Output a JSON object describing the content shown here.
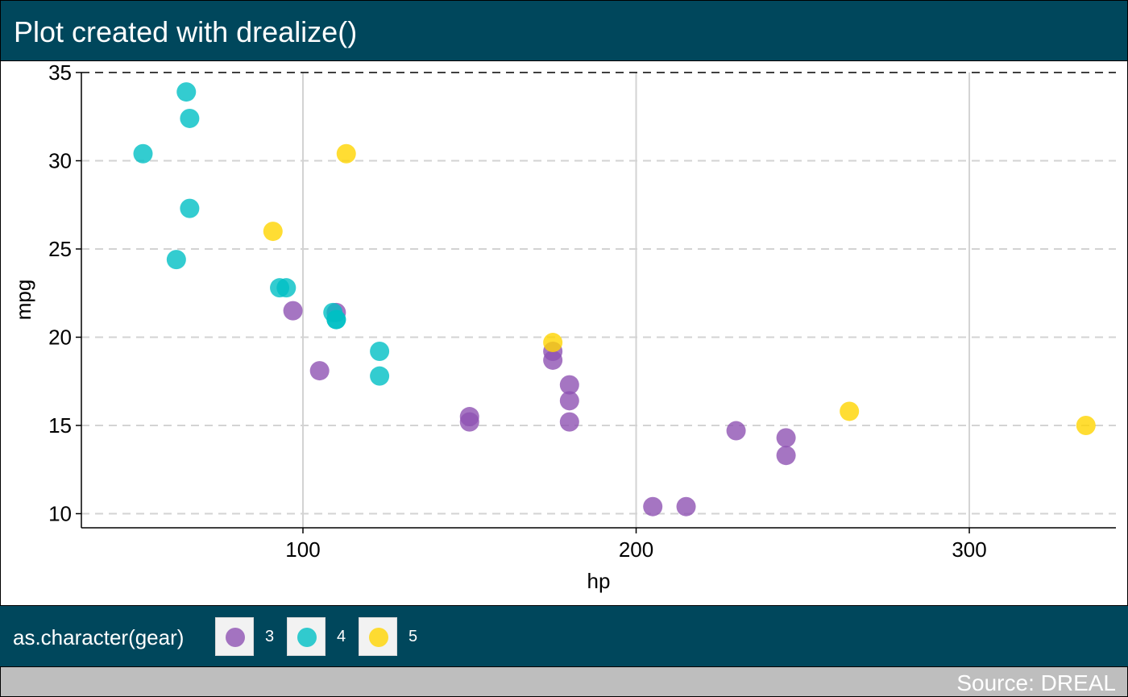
{
  "title": "Plot created with drealize()",
  "caption": "Source: DREAL",
  "legend": {
    "title": "as.character(gear)",
    "items": [
      {
        "label": "3",
        "color": "#8e53b3"
      },
      {
        "label": "4",
        "color": "#00bfc4"
      },
      {
        "label": "5",
        "color": "#ffd400"
      }
    ]
  },
  "chart_data": {
    "type": "scatter",
    "xlabel": "hp",
    "ylabel": "mpg",
    "xlim": [
      33.5,
      344
    ],
    "ylim": [
      9.2,
      35
    ],
    "xticks": [
      100,
      200,
      300
    ],
    "yticks": [
      10,
      15,
      20,
      25,
      30,
      35
    ],
    "grid": {
      "x_major": "solid",
      "y_major": "dashed"
    },
    "legend_position": "bottom",
    "series": [
      {
        "name": "3",
        "color": "#8e53b3",
        "points": [
          {
            "x": 110,
            "y": 21.4
          },
          {
            "x": 175,
            "y": 18.7
          },
          {
            "x": 105,
            "y": 18.1
          },
          {
            "x": 245,
            "y": 14.3
          },
          {
            "x": 180,
            "y": 16.4
          },
          {
            "x": 180,
            "y": 17.3
          },
          {
            "x": 180,
            "y": 15.2
          },
          {
            "x": 205,
            "y": 10.4
          },
          {
            "x": 215,
            "y": 10.4
          },
          {
            "x": 230,
            "y": 14.7
          },
          {
            "x": 97,
            "y": 21.5
          },
          {
            "x": 150,
            "y": 15.5
          },
          {
            "x": 150,
            "y": 15.2
          },
          {
            "x": 245,
            "y": 13.3
          },
          {
            "x": 175,
            "y": 19.2
          }
        ]
      },
      {
        "name": "4",
        "color": "#00bfc4",
        "points": [
          {
            "x": 110,
            "y": 21.0
          },
          {
            "x": 110,
            "y": 21.0
          },
          {
            "x": 93,
            "y": 22.8
          },
          {
            "x": 62,
            "y": 24.4
          },
          {
            "x": 95,
            "y": 22.8
          },
          {
            "x": 123,
            "y": 19.2
          },
          {
            "x": 123,
            "y": 17.8
          },
          {
            "x": 66,
            "y": 32.4
          },
          {
            "x": 52,
            "y": 30.4
          },
          {
            "x": 65,
            "y": 33.9
          },
          {
            "x": 66,
            "y": 27.3
          },
          {
            "x": 109,
            "y": 21.4
          }
        ]
      },
      {
        "name": "5",
        "color": "#ffd400",
        "points": [
          {
            "x": 91,
            "y": 26.0
          },
          {
            "x": 113,
            "y": 30.4
          },
          {
            "x": 264,
            "y": 15.8
          },
          {
            "x": 175,
            "y": 19.7
          },
          {
            "x": 335,
            "y": 15.0
          }
        ]
      }
    ]
  }
}
